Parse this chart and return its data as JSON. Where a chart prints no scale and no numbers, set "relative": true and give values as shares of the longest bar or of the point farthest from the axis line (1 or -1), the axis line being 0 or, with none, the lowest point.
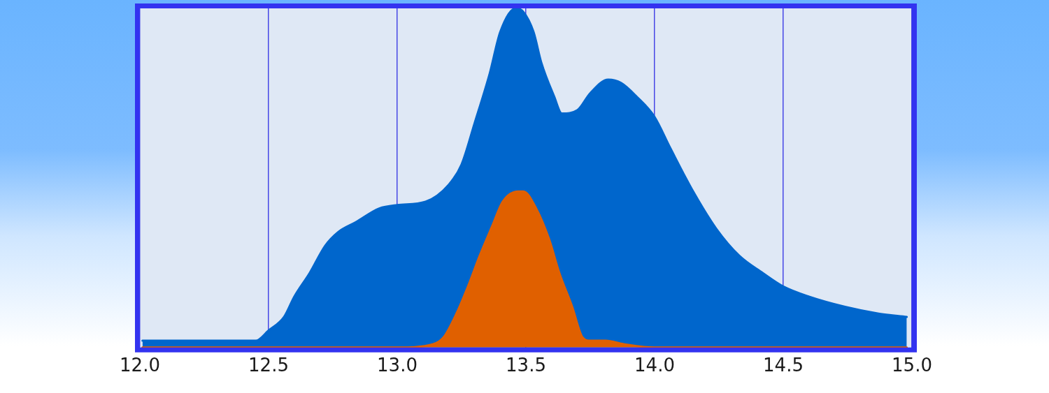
{
  "chart_data": {
    "type": "area",
    "relative": true,
    "xlim": [
      12,
      15
    ],
    "xticks": [
      {
        "value": 12,
        "label": "12.0"
      },
      12.5,
      {
        "value": 13,
        "label": "13.0"
      },
      13.5,
      {
        "value": 14,
        "label": "14.0"
      },
      14.5,
      {
        "value": 15,
        "label": "15.0"
      }
    ],
    "grid": "x",
    "marker": "none",
    "series": [
      {
        "color": "#0066cc",
        "x": [
          12.01,
          12.3,
          12.45,
          12.5,
          12.56,
          12.6,
          12.66,
          12.72,
          12.77,
          12.84,
          12.93,
          13.0,
          13.11,
          13.2,
          13.25,
          13.3,
          13.36,
          13.4,
          13.46,
          13.49,
          13.53,
          13.56,
          13.61,
          13.64,
          13.7,
          13.75,
          13.82,
          13.87,
          13.93,
          14.0,
          14.06,
          14.15,
          14.24,
          14.33,
          14.42,
          14.5,
          14.6,
          14.74,
          14.87,
          14.98
        ],
        "values": [
          0.02,
          0.02,
          0.02,
          0.05,
          0.09,
          0.15,
          0.22,
          0.3,
          0.34,
          0.37,
          0.41,
          0.42,
          0.43,
          0.48,
          0.54,
          0.66,
          0.81,
          0.93,
          1.0,
          0.99,
          0.93,
          0.84,
          0.74,
          0.69,
          0.7,
          0.75,
          0.79,
          0.78,
          0.74,
          0.68,
          0.59,
          0.46,
          0.35,
          0.27,
          0.22,
          0.18,
          0.15,
          0.12,
          0.1,
          0.09
        ]
      },
      {
        "color": "#e06000",
        "x": [
          12.01,
          13.0,
          13.14,
          13.18,
          13.23,
          13.28,
          13.32,
          13.37,
          13.41,
          13.47,
          13.49,
          13.54,
          13.59,
          13.63,
          13.68,
          13.72,
          13.75,
          13.81,
          13.88,
          14.0,
          14.98
        ],
        "values": [
          0.0,
          0.0,
          0.01,
          0.03,
          0.1,
          0.19,
          0.27,
          0.36,
          0.43,
          0.46,
          0.46,
          0.41,
          0.32,
          0.22,
          0.12,
          0.03,
          0.02,
          0.02,
          0.01,
          0.0,
          0.0
        ]
      }
    ]
  }
}
